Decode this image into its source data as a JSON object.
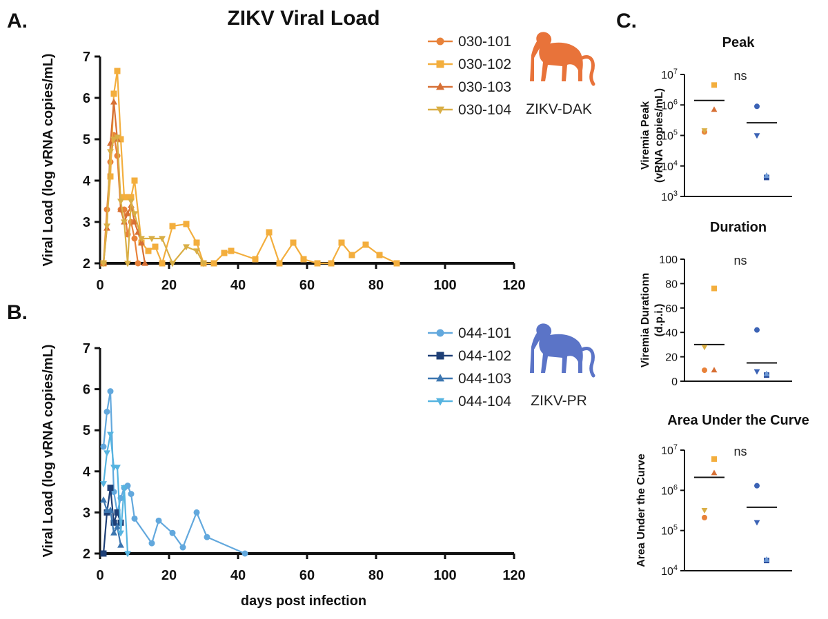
{
  "figure": {
    "panel_a_letter": "A.",
    "panel_b_letter": "B.",
    "panel_c_letter": "C."
  },
  "chart_data": [
    {
      "id": "A",
      "type": "line",
      "title": "ZIKV Viral Load",
      "xlabel": "",
      "ylabel": "Viral Load (log vRNA copies/mL)",
      "xlim": [
        0,
        120
      ],
      "ylim": [
        2,
        7
      ],
      "xticks": [
        0,
        20,
        40,
        60,
        80,
        100,
        120
      ],
      "yticks": [
        2,
        3,
        4,
        5,
        6,
        7
      ],
      "legend_position": "top-right",
      "legend_caption": "ZIKV-DAK",
      "caption_color": "#e8733a",
      "logo": "monkey-silhouette",
      "series": [
        {
          "name": "030-101",
          "color": "#e8823a",
          "marker": "circle",
          "x": [
            1,
            2,
            3,
            4,
            5,
            6,
            7,
            8,
            9,
            10,
            11
          ],
          "y": [
            2.0,
            3.3,
            4.45,
            5.1,
            4.6,
            3.3,
            3.3,
            2.7,
            3.0,
            2.6,
            2.0
          ]
        },
        {
          "name": "030-102",
          "color": "#f3ae3d",
          "marker": "square",
          "x": [
            1,
            3,
            4,
            5,
            6,
            7,
            8,
            9,
            10,
            12,
            14,
            16,
            18,
            21,
            25,
            28,
            30,
            33,
            36,
            38,
            45,
            49,
            52,
            56,
            59,
            63,
            67,
            70,
            73,
            77,
            81,
            86
          ],
          "y": [
            2.0,
            4.1,
            6.1,
            6.65,
            5.0,
            3.6,
            3.6,
            3.6,
            4.0,
            2.5,
            2.3,
            2.4,
            2.0,
            2.9,
            2.95,
            2.5,
            2.0,
            2.0,
            2.25,
            2.3,
            2.1,
            2.75,
            2.0,
            2.5,
            2.1,
            2.0,
            2.0,
            2.5,
            2.2,
            2.45,
            2.2,
            2.0
          ]
        },
        {
          "name": "030-103",
          "color": "#d77035",
          "marker": "triangle-up",
          "x": [
            1,
            2,
            3,
            4,
            5,
            6,
            7,
            8,
            9,
            10,
            11,
            12,
            13
          ],
          "y": [
            2.0,
            2.85,
            4.9,
            5.9,
            5.0,
            3.3,
            3.0,
            3.2,
            3.4,
            3.0,
            2.75,
            2.5,
            2.0
          ]
        },
        {
          "name": "030-104",
          "color": "#d9ae45",
          "marker": "triangle-down",
          "x": [
            1,
            2,
            3,
            4,
            5,
            6,
            7,
            8,
            9,
            10,
            12,
            15,
            18,
            21,
            25,
            28,
            30
          ],
          "y": [
            2.0,
            2.9,
            4.7,
            5.0,
            5.05,
            3.5,
            3.0,
            2.0,
            3.5,
            3.2,
            2.6,
            2.6,
            2.6,
            2.0,
            2.4,
            2.3,
            2.0
          ]
        }
      ]
    },
    {
      "id": "B",
      "type": "line",
      "title": "",
      "xlabel": "days post infection",
      "ylabel": "Viral Load (log vRNA copies/mL)",
      "xlim": [
        0,
        120
      ],
      "ylim": [
        2,
        7
      ],
      "xticks": [
        0,
        20,
        40,
        60,
        80,
        100,
        120
      ],
      "yticks": [
        2,
        3,
        4,
        5,
        6,
        7
      ],
      "legend_position": "top-right",
      "legend_caption": "ZIKV-PR",
      "caption_color": "#5b74c7",
      "logo": "monkey-silhouette",
      "series": [
        {
          "name": "044-101",
          "color": "#62a8dd",
          "marker": "circle",
          "x": [
            1,
            2,
            3,
            4,
            5,
            6,
            7,
            8,
            9,
            10,
            15,
            17,
            21,
            24,
            28,
            31,
            42
          ],
          "y": [
            4.6,
            5.45,
            5.95,
            3.5,
            3.0,
            3.35,
            3.6,
            3.65,
            3.45,
            2.85,
            2.25,
            2.8,
            2.5,
            2.15,
            3.0,
            2.4,
            2.0
          ]
        },
        {
          "name": "044-102",
          "color": "#1e3f76",
          "marker": "square",
          "x": [
            1,
            2,
            3,
            4,
            5,
            6
          ],
          "y": [
            2.0,
            3.0,
            3.6,
            2.75,
            3.0,
            2.75
          ]
        },
        {
          "name": "044-103",
          "color": "#3c76b0",
          "marker": "triangle-up",
          "x": [
            1,
            2,
            3,
            4,
            5,
            6
          ],
          "y": [
            3.3,
            3.05,
            3.05,
            2.5,
            2.65,
            2.2
          ]
        },
        {
          "name": "044-104",
          "color": "#56b4e0",
          "marker": "triangle-down",
          "x": [
            1,
            2,
            3,
            4,
            5,
            6,
            7,
            8
          ],
          "y": [
            3.7,
            4.45,
            4.9,
            4.1,
            4.1,
            2.5,
            3.6,
            2.0
          ]
        }
      ]
    },
    {
      "id": "C-peak",
      "type": "scatter",
      "title": "Peak",
      "ylabel": "Viremia Peak (vRNA copies/mL)",
      "scale": "log",
      "ylim": [
        1000,
        10000000
      ],
      "ytick_values": [
        1000,
        10000,
        100000,
        1000000,
        10000000
      ],
      "ytick_bases": [
        "10",
        "10",
        "10",
        "10",
        "10"
      ],
      "ytick_exponents": [
        "3",
        "4",
        "5",
        "6",
        "7"
      ],
      "annotation": "ns",
      "groups": [
        {
          "name": "ZIKV-DAK",
          "mean": 1400000,
          "points": [
            {
              "y": 130000,
              "marker": "circle",
              "color": "#e8823a"
            },
            {
              "y": 4500000,
              "marker": "square",
              "color": "#f3ae3d"
            },
            {
              "y": 700000,
              "marker": "triangle-up",
              "color": "#d77035"
            },
            {
              "y": 145000,
              "marker": "triangle-down",
              "color": "#d9ae45"
            }
          ]
        },
        {
          "name": "ZIKV-PR",
          "mean": 260000,
          "points": [
            {
              "y": 900000,
              "marker": "circle",
              "color": "#3c63b5"
            },
            {
              "y": 4200,
              "marker": "square",
              "color": "#2d4f9e"
            },
            {
              "y": 4800,
              "marker": "triangle-up",
              "color": "#6d9ad6"
            },
            {
              "y": 100000,
              "marker": "triangle-down",
              "color": "#3c63b5"
            }
          ]
        }
      ]
    },
    {
      "id": "C-duration",
      "type": "scatter",
      "title": "Duration",
      "ylabel": "Viremia Durationn (d.p.i.)",
      "scale": "linear",
      "ylim": [
        0,
        100
      ],
      "yticks": [
        0,
        20,
        40,
        60,
        80,
        100
      ],
      "annotation": "ns",
      "groups": [
        {
          "name": "ZIKV-DAK",
          "mean": 30,
          "points": [
            {
              "y": 9,
              "marker": "circle",
              "color": "#e8823a"
            },
            {
              "y": 76,
              "marker": "square",
              "color": "#f3ae3d"
            },
            {
              "y": 9,
              "marker": "triangle-up",
              "color": "#d77035"
            },
            {
              "y": 28,
              "marker": "triangle-down",
              "color": "#d9ae45"
            }
          ]
        },
        {
          "name": "ZIKV-PR",
          "mean": 15,
          "points": [
            {
              "y": 42,
              "marker": "circle",
              "color": "#3c63b5"
            },
            {
              "y": 5,
              "marker": "square",
              "color": "#2d4f9e"
            },
            {
              "y": 6,
              "marker": "triangle-up",
              "color": "#6d9ad6"
            },
            {
              "y": 8,
              "marker": "triangle-down",
              "color": "#3c63b5"
            }
          ]
        }
      ]
    },
    {
      "id": "C-auc",
      "type": "scatter",
      "title": "Area Under the Curve",
      "ylabel": "Area Under the Curve",
      "scale": "log",
      "ylim": [
        10000,
        10000000
      ],
      "ytick_values": [
        10000,
        100000,
        1000000,
        10000000
      ],
      "ytick_bases": [
        "10",
        "10",
        "10",
        "10"
      ],
      "ytick_exponents": [
        "4",
        "5",
        "6",
        "7"
      ],
      "annotation": "ns",
      "groups": [
        {
          "name": "ZIKV-DAK",
          "mean": 2100000,
          "points": [
            {
              "y": 210000,
              "marker": "circle",
              "color": "#e8823a"
            },
            {
              "y": 6000000,
              "marker": "square",
              "color": "#f3ae3d"
            },
            {
              "y": 2700000,
              "marker": "triangle-up",
              "color": "#d77035"
            },
            {
              "y": 320000,
              "marker": "triangle-down",
              "color": "#d9ae45"
            }
          ]
        },
        {
          "name": "ZIKV-PR",
          "mean": 380000,
          "points": [
            {
              "y": 1300000,
              "marker": "circle",
              "color": "#3c63b5"
            },
            {
              "y": 18000,
              "marker": "square",
              "color": "#2d4f9e"
            },
            {
              "y": 19000,
              "marker": "triangle-up",
              "color": "#6d9ad6"
            },
            {
              "y": 160000,
              "marker": "triangle-down",
              "color": "#3c63b5"
            }
          ]
        }
      ]
    }
  ]
}
